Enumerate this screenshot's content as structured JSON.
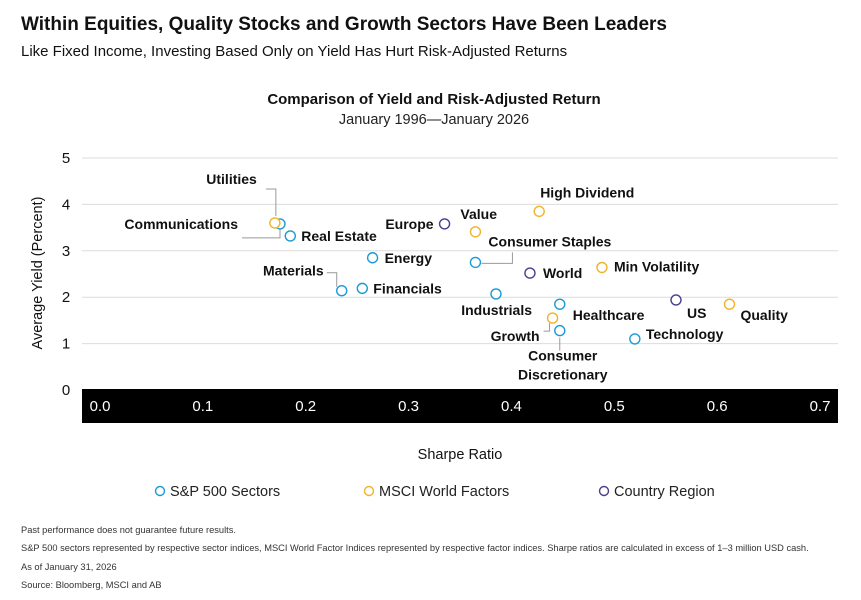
{
  "header": {
    "title": "Within Equities, Quality Stocks and Growth Sectors Have Been Leaders",
    "subtitle": "Like Fixed Income, Investing Based Only on Yield Has Hurt Risk-Adjusted Returns"
  },
  "chart_data": {
    "type": "scatter",
    "title": "Comparison of Yield and Risk-Adjusted Return",
    "subtitle": "January 1996—January 2026",
    "xlabel": "Sharpe Ratio",
    "ylabel": "Average Yield (Percent)",
    "xlim": [
      0.0,
      0.7
    ],
    "ylim": [
      0,
      5
    ],
    "xticks": [
      "0.0",
      "0.1",
      "0.2",
      "0.3",
      "0.4",
      "0.5",
      "0.6",
      "0.7"
    ],
    "yticks": [
      "0",
      "1",
      "2",
      "3",
      "4",
      "5"
    ],
    "grid": true,
    "legend_position": "bottom",
    "series": [
      {
        "name": "S&P 500 Sectors",
        "color": "#1a9bd7",
        "points": [
          {
            "label": "Communications",
            "x": 0.175,
            "y": 3.58
          },
          {
            "label": "Real Estate",
            "x": 0.185,
            "y": 3.32
          },
          {
            "label": "Energy",
            "x": 0.265,
            "y": 2.85
          },
          {
            "label": "Materials",
            "x": 0.235,
            "y": 2.14
          },
          {
            "label": "Financials",
            "x": 0.255,
            "y": 2.19
          },
          {
            "label": "Consumer Staples",
            "x": 0.365,
            "y": 2.75
          },
          {
            "label": "Industrials",
            "x": 0.385,
            "y": 2.07
          },
          {
            "label": "Healthcare",
            "x": 0.447,
            "y": 1.85
          },
          {
            "label": "Consumer Discretionary",
            "x": 0.447,
            "y": 1.28
          },
          {
            "label": "Technology",
            "x": 0.52,
            "y": 1.1
          }
        ]
      },
      {
        "name": "MSCI World Factors",
        "color": "#f0b429",
        "points": [
          {
            "label": "Utilities",
            "x": 0.17,
            "y": 3.6
          },
          {
            "label": "Value",
            "x": 0.365,
            "y": 3.41
          },
          {
            "label": "High Dividend",
            "x": 0.427,
            "y": 3.85
          },
          {
            "label": "Min Volatility",
            "x": 0.488,
            "y": 2.64
          },
          {
            "label": "Growth",
            "x": 0.44,
            "y": 1.55
          },
          {
            "label": "Quality",
            "x": 0.612,
            "y": 1.85
          }
        ]
      },
      {
        "name": "Country Region",
        "color": "#4a3f8f",
        "points": [
          {
            "label": "Europe",
            "x": 0.335,
            "y": 3.58
          },
          {
            "label": "World",
            "x": 0.418,
            "y": 2.52
          },
          {
            "label": "US",
            "x": 0.56,
            "y": 1.94
          }
        ]
      }
    ]
  },
  "notes": {
    "line1": "Past performance does not guarantee future results.",
    "line2": "S&P 500 sectors represented by respective sector indices, MSCI World Factor Indices represented by respective factor indices. Sharpe ratios are calculated in excess of 1–3 million USD cash.",
    "line3": "As of January 31, 2026",
    "line4": "Source: Bloomberg, MSCI and AB"
  }
}
